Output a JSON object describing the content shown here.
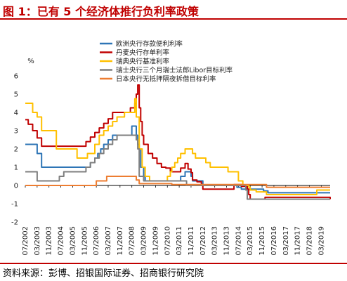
{
  "header": {
    "title": "图 1：已有 5 个经济体推行负利率政策"
  },
  "footer": {
    "source": "资料来源：彭博、招银国际证券、招商银行研究院"
  },
  "colors": {
    "ecb": "#2e75b6",
    "denmark": "#c00000",
    "sweden": "#ffc000",
    "swiss": "#7f7f7f",
    "japan": "#ed7d31",
    "accent": "#c00000"
  },
  "chart_data": {
    "type": "line",
    "ylabel": "%",
    "ylim": [
      -2,
      6
    ],
    "yticks": [
      -2,
      -1,
      0,
      1,
      2,
      3,
      4,
      5,
      6
    ],
    "xlim": [
      "2002-07",
      "2019-09"
    ],
    "xticks": [
      "07/2002",
      "03/2003",
      "11/2003",
      "07/2004",
      "03/2005",
      "11/2005",
      "07/2006",
      "03/2007",
      "11/2007",
      "07/2008",
      "03/2009",
      "11/2009",
      "07/2010",
      "03/2011",
      "11/2011",
      "07/2012",
      "03/2013",
      "11/2013",
      "07/2014",
      "03/2015",
      "11/2015",
      "07/2016",
      "03/2017",
      "11/2017",
      "07/2018",
      "03/2019"
    ],
    "legend_position": "top-right",
    "series": [
      {
        "name": "欧洲央行存款便利利率",
        "color_key": "ecb",
        "x": [
          "2002-07",
          "2002-12",
          "2003-03",
          "2003-06",
          "2005-12",
          "2006-03",
          "2006-06",
          "2006-08",
          "2006-10",
          "2006-12",
          "2007-03",
          "2007-06",
          "2008-07",
          "2008-10",
          "2008-11",
          "2008-12",
          "2009-01",
          "2009-03",
          "2009-04",
          "2011-04",
          "2011-07",
          "2011-11",
          "2011-12",
          "2012-07",
          "2014-06",
          "2014-09",
          "2015-12",
          "2016-03",
          "2019-09"
        ],
        "y": [
          2.25,
          2.25,
          1.75,
          1.0,
          1.0,
          1.25,
          1.5,
          1.75,
          2.0,
          2.25,
          2.5,
          2.75,
          3.25,
          2.75,
          2.25,
          2.0,
          1.0,
          0.5,
          0.25,
          0.5,
          0.75,
          0.5,
          0.25,
          0.0,
          -0.1,
          -0.2,
          -0.3,
          -0.4,
          -0.4
        ]
      },
      {
        "name": "丹麦央行存单利率",
        "color_key": "denmark",
        "x": [
          "2002-07",
          "2002-09",
          "2002-12",
          "2003-03",
          "2003-06",
          "2005-09",
          "2005-12",
          "2006-03",
          "2006-06",
          "2006-09",
          "2006-12",
          "2007-03",
          "2007-06",
          "2008-06",
          "2008-09",
          "2008-10",
          "2008-11",
          "2008-12",
          "2009-01",
          "2009-02",
          "2009-03",
          "2009-06",
          "2009-09",
          "2009-12",
          "2010-03",
          "2010-06",
          "2010-09",
          "2010-12",
          "2011-04",
          "2011-07",
          "2011-09",
          "2011-11",
          "2011-12",
          "2012-03",
          "2012-06",
          "2012-07",
          "2014-04",
          "2014-09",
          "2015-01",
          "2015-02",
          "2015-03",
          "2016-01",
          "2019-09"
        ],
        "y": [
          3.6,
          3.35,
          3.0,
          2.6,
          2.15,
          2.15,
          2.4,
          2.65,
          2.9,
          3.15,
          3.4,
          3.65,
          4.0,
          4.25,
          4.5,
          5.0,
          5.5,
          4.25,
          3.5,
          2.75,
          2.25,
          1.75,
          1.5,
          1.2,
          1.0,
          0.95,
          0.75,
          0.75,
          0.95,
          1.2,
          0.9,
          0.7,
          0.3,
          0.2,
          0.05,
          -0.2,
          0.05,
          -0.05,
          -0.2,
          -0.5,
          -0.75,
          -0.65,
          -0.75
        ]
      },
      {
        "name": "瑞典央行基准利率",
        "color_key": "sweden",
        "x": [
          "2002-07",
          "2002-12",
          "2003-03",
          "2003-06",
          "2004-04",
          "2005-06",
          "2006-01",
          "2006-06",
          "2006-09",
          "2006-12",
          "2007-03",
          "2007-06",
          "2007-09",
          "2008-02",
          "2008-09",
          "2008-10",
          "2008-12",
          "2009-02",
          "2009-04",
          "2009-07",
          "2010-07",
          "2010-09",
          "2010-10",
          "2010-12",
          "2011-02",
          "2011-04",
          "2011-07",
          "2011-12",
          "2012-02",
          "2012-09",
          "2012-12",
          "2013-12",
          "2014-07",
          "2014-10",
          "2015-02",
          "2015-03",
          "2015-07",
          "2016-02",
          "2018-12",
          "2019-09"
        ],
        "y": [
          4.5,
          4.0,
          3.75,
          3.0,
          2.0,
          1.5,
          1.75,
          2.25,
          2.75,
          3.0,
          3.25,
          3.5,
          3.75,
          4.0,
          4.75,
          3.75,
          2.0,
          1.0,
          0.5,
          0.25,
          0.5,
          0.75,
          1.0,
          1.25,
          1.5,
          1.75,
          2.0,
          1.75,
          1.5,
          1.25,
          1.0,
          0.75,
          0.25,
          0.0,
          -0.1,
          -0.25,
          -0.35,
          -0.5,
          -0.25,
          -0.25
        ]
      },
      {
        "name": "瑞士央行三个月瑞士法郎Libor目标利率",
        "color_key": "swiss",
        "x": [
          "2002-07",
          "2003-03",
          "2004-06",
          "2004-09",
          "2004-12",
          "2005-12",
          "2006-03",
          "2006-06",
          "2006-09",
          "2006-12",
          "2007-03",
          "2007-06",
          "2007-09",
          "2008-10",
          "2008-11",
          "2008-12",
          "2009-03",
          "2011-08",
          "2014-12",
          "2015-01",
          "2019-09"
        ],
        "y": [
          0.75,
          0.25,
          0.5,
          0.75,
          0.75,
          1.0,
          1.25,
          1.5,
          1.75,
          2.0,
          2.25,
          2.5,
          2.75,
          2.5,
          2.0,
          0.5,
          0.25,
          0.0,
          -0.25,
          -0.75,
          -0.75
        ]
      },
      {
        "name": "日本央行无抵押隔夜拆借目标利率",
        "color_key": "japan",
        "x": [
          "2002-07",
          "2006-07",
          "2007-02",
          "2008-10",
          "2008-12",
          "2010-10",
          "2016-02",
          "2019-09"
        ],
        "y": [
          0.0,
          0.25,
          0.5,
          0.3,
          0.1,
          0.05,
          -0.1,
          -0.1
        ]
      }
    ]
  }
}
